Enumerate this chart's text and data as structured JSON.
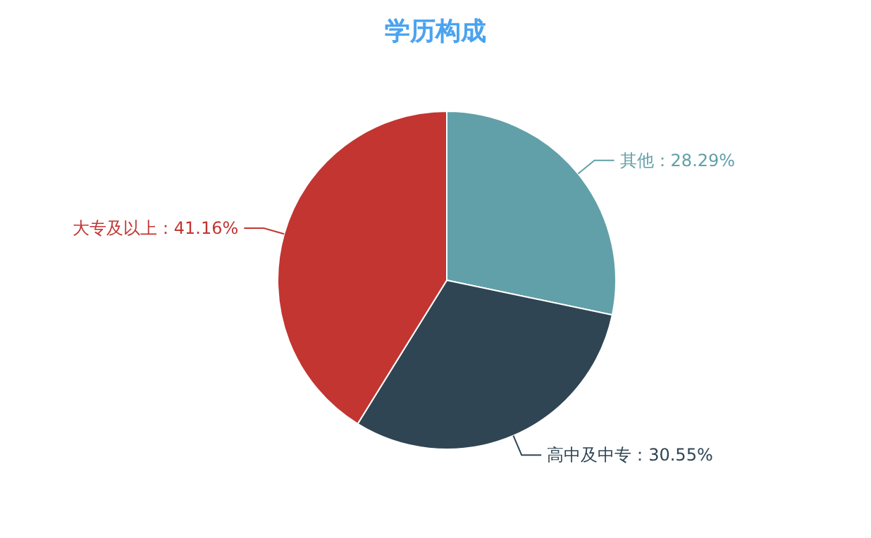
{
  "chart_data": {
    "type": "pie",
    "title": "学历构成",
    "categories": [
      "其他",
      "高中及中专",
      "大专及以上"
    ],
    "values": [
      28.29,
      30.55,
      41.16
    ],
    "colors": [
      "#61a0a8",
      "#2f4554",
      "#c23531"
    ],
    "value_labels": [
      "：28.29%",
      "：30.55%",
      "：41.16%"
    ]
  }
}
